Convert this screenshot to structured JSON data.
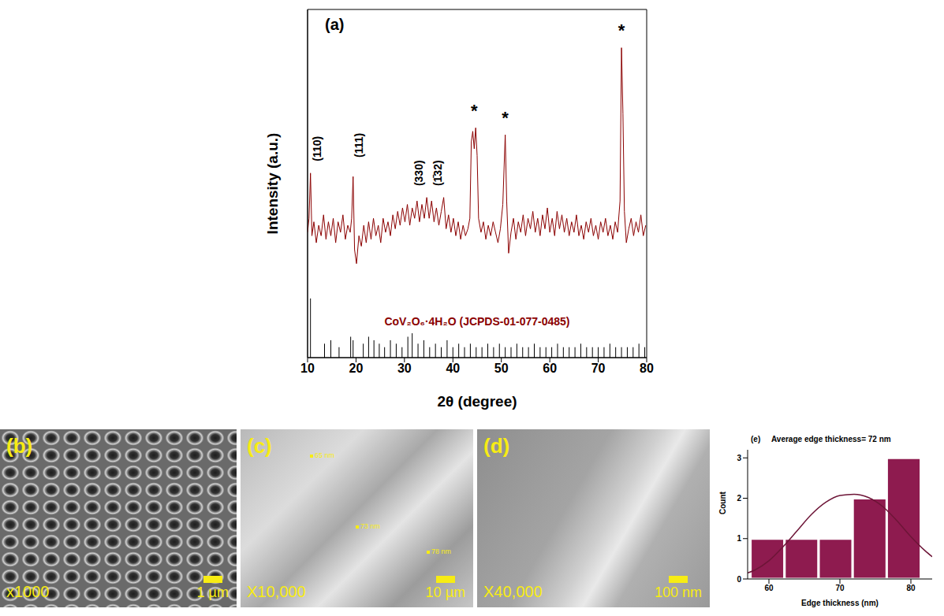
{
  "chart_data": [
    {
      "panel": "(a)",
      "type": "line",
      "xlabel": "2θ (degree)",
      "ylabel": "Intensity (a.u.)",
      "xlim": [
        10,
        80
      ],
      "xticks": [
        10,
        20,
        30,
        40,
        50,
        60,
        70,
        80
      ],
      "ylim": [
        0,
        100
      ],
      "yticks": [
        0,
        12.5,
        25,
        37.5,
        50,
        62.5,
        75,
        87.5,
        100
      ],
      "tick_labels": "x",
      "series": [
        {
          "type": "line",
          "color": "#8b0000",
          "x": [
            10,
            10.3,
            10.6,
            10.9,
            11.3,
            11.8,
            12.3,
            12.8,
            13.3,
            13.8,
            14.3,
            14.8,
            15.3,
            15.8,
            16.3,
            16.8,
            17.3,
            17.8,
            18.3,
            18.8,
            19.1,
            19.4,
            19.7,
            20.1,
            20.6,
            21.1,
            21.6,
            22.1,
            22.6,
            23.1,
            23.6,
            24.1,
            24.6,
            25.1,
            25.6,
            26.1,
            26.6,
            27.1,
            27.6,
            28.1,
            28.6,
            29.1,
            29.6,
            30.1,
            30.6,
            31.1,
            31.6,
            32.1,
            32.6,
            33.1,
            33.6,
            34.1,
            34.6,
            35.1,
            35.6,
            36.1,
            36.6,
            37.1,
            37.6,
            38.1,
            38.6,
            39.1,
            39.6,
            40.1,
            40.6,
            41.1,
            41.6,
            42.1,
            42.6,
            43.1,
            43.5,
            43.8,
            44.1,
            44.4,
            44.7,
            45.0,
            45.3,
            45.8,
            46.3,
            46.8,
            47.3,
            47.8,
            48.3,
            48.8,
            49.3,
            49.8,
            50.3,
            50.8,
            51.1,
            51.5,
            52.0,
            52.5,
            53.0,
            53.5,
            54.0,
            54.5,
            55.0,
            55.5,
            56.0,
            56.5,
            57,
            57.5,
            58,
            58.5,
            59,
            59.5,
            60,
            60.5,
            61,
            61.5,
            62,
            62.5,
            63,
            63.5,
            64,
            64.5,
            65,
            65.5,
            66,
            66.5,
            67,
            67.5,
            68,
            68.5,
            69,
            69.5,
            70,
            70.5,
            71,
            71.5,
            72,
            72.5,
            73,
            73.5,
            74,
            74.5,
            74.8,
            75.1,
            75.4,
            75.8,
            76.3,
            76.8,
            77.3,
            77.8,
            78.3,
            78.8,
            79.3,
            79.8
          ],
          "values": [
            36,
            40,
            53,
            35,
            39,
            33,
            38,
            35,
            41,
            34,
            39,
            35,
            40,
            33,
            39,
            36,
            41,
            34,
            38,
            36,
            40,
            52,
            31,
            27,
            35,
            32,
            38,
            33,
            39,
            34,
            40,
            35,
            38,
            33,
            40,
            36,
            39,
            35,
            41,
            37,
            42,
            38,
            43,
            39,
            44,
            38,
            43,
            40,
            45,
            39,
            44,
            40,
            46,
            40,
            45,
            39,
            43,
            38,
            42,
            46,
            37,
            41,
            36,
            40,
            35,
            39,
            34,
            38,
            35,
            37,
            40,
            62,
            65,
            60,
            66,
            58,
            40,
            36,
            39,
            34,
            38,
            35,
            39,
            36,
            33,
            37,
            44,
            64,
            45,
            30,
            36,
            40,
            34,
            39,
            36,
            41,
            35,
            40,
            37,
            42,
            36,
            40,
            35,
            41,
            37,
            43,
            36,
            40,
            35,
            42,
            37,
            41,
            36,
            40,
            35,
            39,
            36,
            41,
            35,
            38,
            34,
            39,
            36,
            40,
            35,
            38,
            34,
            39,
            36,
            40,
            35,
            38,
            34,
            39,
            36,
            45,
            89,
            70,
            42,
            33,
            37,
            40,
            35,
            39,
            36,
            41,
            35,
            38
          ]
        },
        {
          "type": "stick",
          "color": "#000000",
          "x": [
            10.6,
            13.5,
            14.8,
            16.5,
            18.9,
            19.4,
            21.5,
            22.6,
            23.7,
            24.8,
            25.9,
            27.1,
            28.3,
            29.5,
            30.7,
            31.6,
            32.8,
            34.0,
            35.2,
            36.4,
            37.6,
            38.8,
            40.0,
            41.2,
            42.4,
            43.6,
            44.8,
            46.0,
            47.2,
            48.4,
            49.6,
            50.8,
            52.0,
            53.2,
            54.4,
            55.6,
            56.8,
            58.0,
            59.2,
            60.4,
            61.6,
            62.8,
            64.0,
            65.2,
            66.4,
            67.6,
            68.8,
            70.0,
            71.2,
            72.4,
            73.6,
            74.8,
            76.0,
            77.2,
            78.4,
            79.6
          ],
          "values": [
            17,
            4,
            5,
            3,
            6,
            5,
            4,
            6,
            5,
            4,
            3,
            5,
            4,
            3,
            6,
            7,
            4,
            5,
            3,
            4,
            3,
            5,
            3,
            4,
            3,
            4,
            3,
            3,
            4,
            3,
            4,
            3,
            3,
            4,
            3,
            3,
            4,
            3,
            3,
            3,
            4,
            3,
            3,
            3,
            4,
            3,
            3,
            3,
            3,
            4,
            3,
            3,
            3,
            3,
            4,
            3
          ]
        }
      ],
      "peak_labels": [
        {
          "text": "(110)",
          "x": 12.0,
          "y": 60
        },
        {
          "text": "(111)",
          "x": 20.6,
          "y": 61
        },
        {
          "text": "(330)",
          "x": 32.9,
          "y": 53
        },
        {
          "text": "(1̄32)",
          "x": 36.8,
          "y": 53
        }
      ],
      "annotations": [
        {
          "text": "*",
          "x": 44.4,
          "y": 71
        },
        {
          "text": "*",
          "x": 50.8,
          "y": 69
        },
        {
          "text": "*",
          "x": 74.8,
          "y": 94
        },
        {
          "text": "CoV₂O₆·4H₂O (JCPDS-01-077-0485)",
          "x": 45,
          "y": 10.5
        }
      ]
    },
    {
      "panel": "(e)",
      "type": "histogram",
      "title": "Average edge thickness= 72 nm",
      "xlabel": "Edge thickness (nm)",
      "ylabel": "Count",
      "bins": [
        57.4,
        62.2,
        67.0,
        71.8,
        76.6,
        81.4
      ],
      "counts": [
        1,
        1,
        1,
        2,
        3
      ],
      "color": "#8e1b4f",
      "fit": {
        "type": "line",
        "color": "#6d1537",
        "x": [
          57,
          58,
          60,
          62,
          64,
          66,
          68,
          70,
          72,
          74,
          76,
          78,
          80,
          82,
          83
        ],
        "values": [
          0.15,
          0.22,
          0.45,
          0.8,
          1.2,
          1.6,
          1.9,
          2.07,
          2.1,
          2.02,
          1.8,
          1.45,
          1.05,
          0.7,
          0.55
        ]
      },
      "xlim": [
        57,
        83
      ],
      "xticks": [
        60,
        70,
        80
      ],
      "ylim": [
        0,
        3.2
      ],
      "yticks": [
        0,
        1,
        2,
        3
      ]
    }
  ],
  "sem_images": [
    {
      "panel": "(b)",
      "magnification": "x1000",
      "scale_bar": "1 µm"
    },
    {
      "panel": "(c)",
      "magnification": "X10,000",
      "scale_bar": "10 µm",
      "annotations": [
        "65 nm",
        "73 nm",
        "78 nm"
      ]
    },
    {
      "panel": "(d)",
      "magnification": "X40,000",
      "scale_bar": "100 nm"
    }
  ]
}
